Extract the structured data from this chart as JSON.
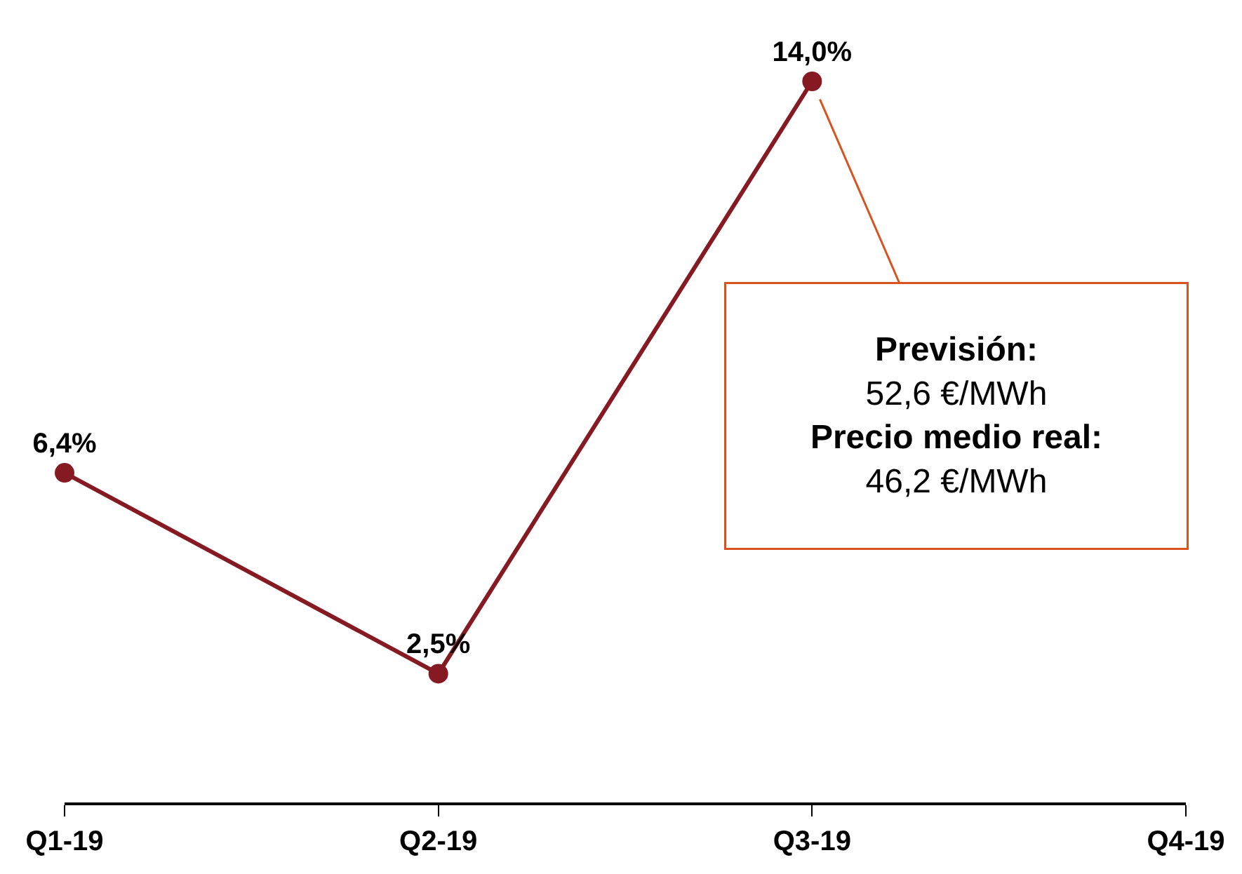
{
  "chart_data": {
    "type": "line",
    "categories": [
      "Q1-19",
      "Q2-19",
      "Q3-19",
      "Q4-19"
    ],
    "series": [
      {
        "color": "#861a22",
        "values": [
          6.4,
          2.5,
          14.0,
          null
        ],
        "value_labels": [
          "6,4%",
          "2,5%",
          "14,0%",
          null
        ]
      }
    ],
    "marker": "circle",
    "line_style": "solid",
    "legend": false,
    "tick_labels": "x",
    "annotations": [
      "Previsión:\n52,6 €/MWh\nPrecio medio real:\n46,2 €/MWh"
    ]
  }
}
